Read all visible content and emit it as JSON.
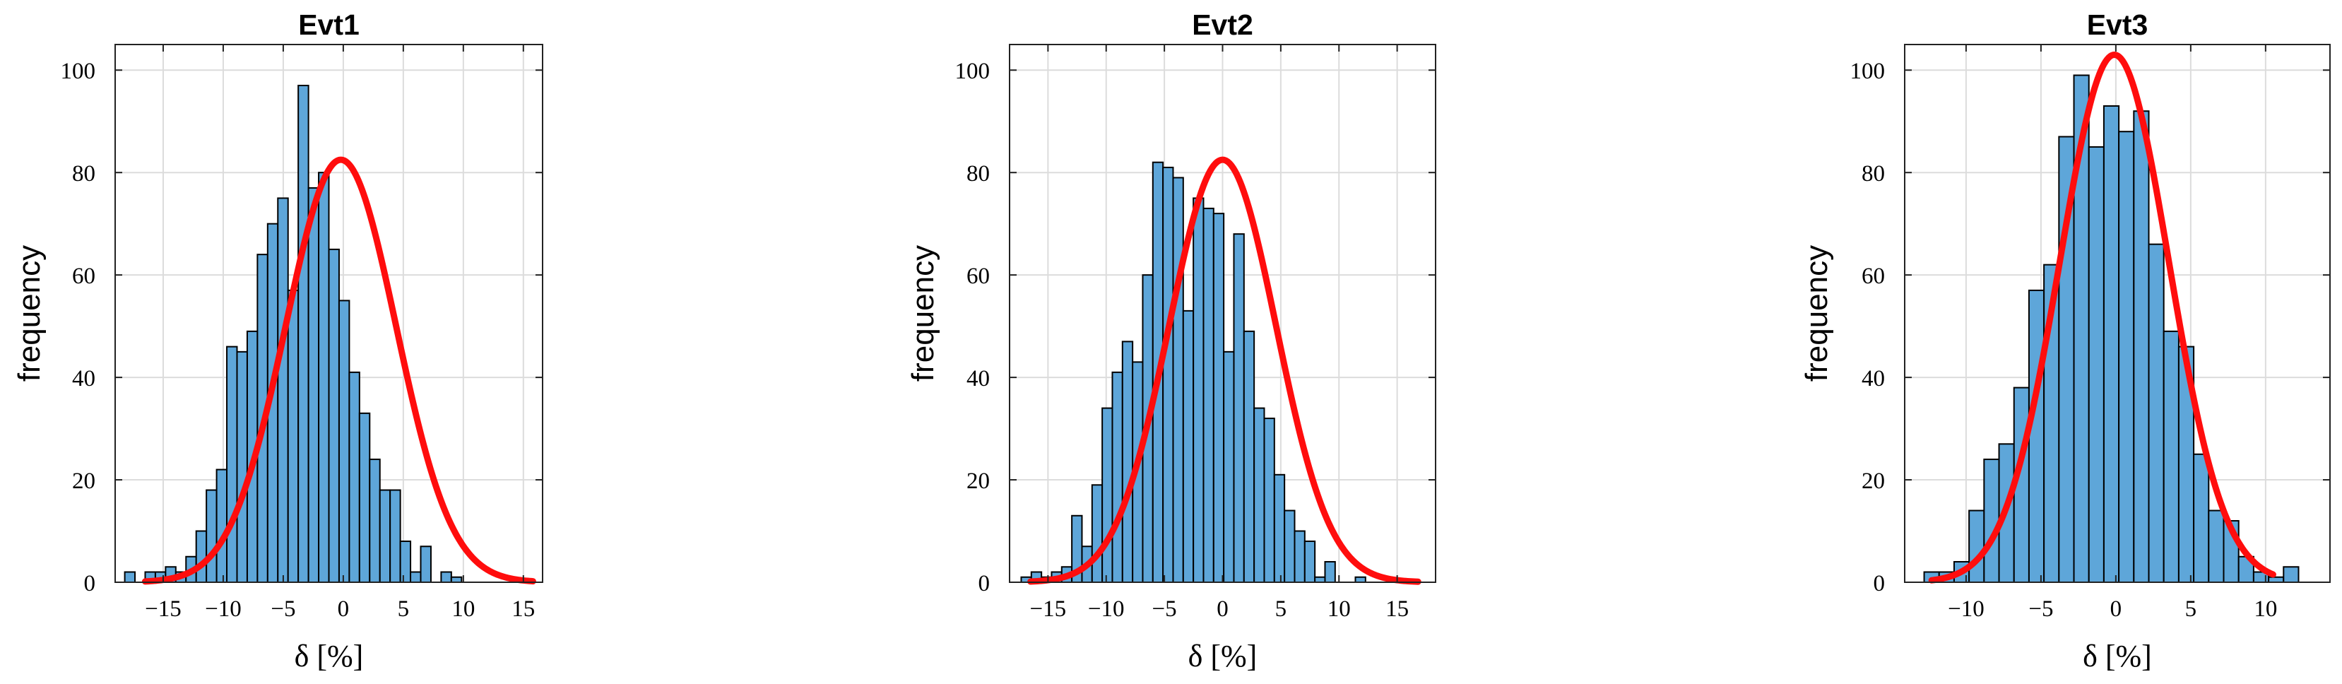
{
  "chart_data": [
    {
      "type": "bar",
      "title": "Evt1",
      "xlabel": "δ [%]",
      "ylabel": "frequency",
      "xlim": [
        -19,
        16.6
      ],
      "ylim": [
        0,
        105
      ],
      "xticks": [
        -15,
        -10,
        -5,
        0,
        5,
        10,
        15
      ],
      "xtick_labels": [
        "−15",
        "−10",
        "−5",
        "0",
        "5",
        "10",
        "15"
      ],
      "yticks": [
        0,
        20,
        40,
        60,
        80,
        100
      ],
      "ytick_labels": [
        "0",
        "20",
        "40",
        "60",
        "80",
        "100"
      ],
      "grid": true,
      "bin_start": -18.2,
      "bin_width": 0.85,
      "values": [
        2,
        0,
        2,
        2,
        3,
        2,
        5,
        10,
        18,
        22,
        46,
        45,
        49,
        64,
        70,
        75,
        57,
        97,
        77,
        80,
        65,
        55,
        41,
        33,
        24,
        18,
        18,
        8,
        2,
        7,
        0,
        2,
        1
      ],
      "fit": {
        "type": "gaussian",
        "mean": -0.2,
        "sigma": 4.6,
        "peak": 82.5,
        "range": [
          -16.5,
          15.8
        ]
      }
    },
    {
      "type": "bar",
      "title": "Evt2",
      "xlabel": "δ [%]",
      "ylabel": "frequency",
      "xlim": [
        -18.3,
        18.3
      ],
      "ylim": [
        0,
        105
      ],
      "xticks": [
        -15,
        -10,
        -5,
        0,
        5,
        10,
        15
      ],
      "xtick_labels": [
        "−15",
        "−10",
        "−5",
        "0",
        "5",
        "10",
        "15"
      ],
      "yticks": [
        0,
        20,
        40,
        60,
        80,
        100
      ],
      "ytick_labels": [
        "0",
        "20",
        "40",
        "60",
        "80",
        "100"
      ],
      "grid": true,
      "bin_start": -17.3,
      "bin_width": 0.87,
      "values": [
        1,
        2,
        1,
        2,
        3,
        13,
        7,
        19,
        34,
        41,
        47,
        43,
        60,
        82,
        81,
        79,
        53,
        75,
        73,
        72,
        45,
        68,
        49,
        34,
        32,
        21,
        14,
        10,
        8,
        1,
        4,
        0,
        0,
        1
      ],
      "fit": {
        "type": "gaussian",
        "mean": 0.0,
        "sigma": 4.6,
        "peak": 82.5,
        "range": [
          -16.5,
          16.8
        ]
      }
    },
    {
      "type": "bar",
      "title": "Evt3",
      "xlabel": "δ [%]",
      "ylabel": "frequency",
      "xlim": [
        -14.1,
        14.3
      ],
      "ylim": [
        0,
        105
      ],
      "xticks": [
        -10,
        -5,
        0,
        5,
        10
      ],
      "xtick_labels": [
        "−10",
        "−5",
        "0",
        "5",
        "10"
      ],
      "yticks": [
        0,
        20,
        40,
        60,
        80,
        100
      ],
      "ytick_labels": [
        "0",
        "20",
        "40",
        "60",
        "80",
        "100"
      ],
      "grid": true,
      "bin_start": -12.8,
      "bin_width": 1.0,
      "values": [
        2,
        2,
        4,
        14,
        24,
        27,
        38,
        57,
        62,
        87,
        99,
        85,
        93,
        88,
        92,
        66,
        49,
        46,
        25,
        14,
        12,
        5,
        2,
        1,
        3
      ],
      "fit": {
        "type": "gaussian",
        "mean": -0.1,
        "sigma": 3.65,
        "peak": 103,
        "range": [
          -12.3,
          10.5
        ]
      }
    }
  ]
}
